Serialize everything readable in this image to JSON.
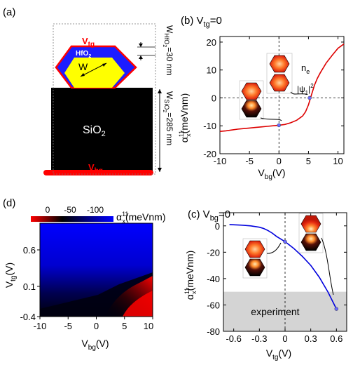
{
  "panel_a": {
    "label": "(a)",
    "top_gate": "V",
    "top_gate_sub": "tg",
    "bottom_gate": "V",
    "bottom_gate_sub": "bg",
    "hfo2_label": "HfO",
    "hfo2_sub": "2",
    "width_label": "W",
    "sio2_label": "SiO",
    "sio2_sub": "2",
    "hfo2_thickness": "W",
    "hfo2_thickness_sub": "HfO",
    "hfo2_thickness_subsub": "2",
    "hfo2_thickness_value": "=30 nm",
    "sio2_thickness": "W",
    "sio2_thickness_sub": "SiO",
    "sio2_thickness_subsub": "2",
    "sio2_thickness_value": "=285 nm",
    "colors": {
      "substrate": "#000000",
      "hfo2": "#1d1dff",
      "wire": "#ffff00",
      "gate": "#ff0000"
    }
  },
  "panel_d": {
    "label": "(d)",
    "colorbar_ticks": [
      "0",
      "-50",
      "-100"
    ],
    "colorbar_label": "α",
    "colorbar_label_sup": "11",
    "colorbar_label_sub": "x",
    "colorbar_label_unit": "(meVnm)",
    "xlabel": "V",
    "xlabel_sub": "bg",
    "xlabel_unit": "(V)",
    "ylabel": "V",
    "ylabel_sub": "tg",
    "ylabel_unit": "(V)",
    "xticks": [
      "-10",
      "-5",
      "0",
      "5",
      "10"
    ],
    "yticks": [
      "0.6",
      "0.1",
      "-0.4"
    ],
    "colormap": [
      "#ff0000",
      "#000000",
      "#0000ff"
    ]
  },
  "chart_data": [
    {
      "type": "line",
      "panel": "(b)",
      "title": "V",
      "title_sub": "tg",
      "title_value": "=0",
      "xlabel": "V",
      "xlabel_sub": "bg",
      "xlabel_unit": "(V)",
      "ylabel": "α",
      "ylabel_sup": "11",
      "ylabel_sub": "x",
      "ylabel_unit": "(meVnm)",
      "xlim": [
        -10,
        11
      ],
      "ylim": [
        -20,
        22
      ],
      "xticks": [
        -10,
        -5,
        0,
        5,
        10
      ],
      "yticks": [
        -20,
        -10,
        0,
        10,
        20
      ],
      "xtick_labels": [
        "-10",
        "-5",
        "0",
        "5",
        "10"
      ],
      "ytick_labels": [
        "-20",
        "-10",
        "0",
        "10",
        "20"
      ],
      "inset_label_top": "n",
      "inset_label_top_sub": "e",
      "inset_label_bottom": "|ψ",
      "inset_label_bottom_sub": "1",
      "inset_label_bottom_tail": "|",
      "inset_label_bottom_sup": "2",
      "series": [
        {
          "color": "#dd0000",
          "x": [
            -10,
            -9,
            -8,
            -7,
            -6,
            -5,
            -4,
            -3,
            -2,
            -1,
            0,
            1,
            2,
            3,
            4,
            4.5,
            5,
            5.5,
            6,
            6.5,
            7,
            8,
            9,
            10,
            11
          ],
          "y": [
            -12.0,
            -11.8,
            -11.5,
            -11.2,
            -11.0,
            -10.8,
            -10.6,
            -10.4,
            -10.2,
            -10.0,
            -9.8,
            -9.5,
            -8.9,
            -8.0,
            -6.5,
            -5.0,
            -2.5,
            1.0,
            4.5,
            7.0,
            9.0,
            12.5,
            15.2,
            17.8,
            19.3
          ]
        }
      ],
      "markers": [
        {
          "x": 0,
          "y": -9.8
        },
        {
          "x": 5.2,
          "y": 0
        }
      ]
    },
    {
      "type": "line",
      "panel": "(c)",
      "title": "V",
      "title_sub": "bg",
      "title_value": "=0",
      "xlabel": "V",
      "xlabel_sub": "tg",
      "xlabel_unit": "(V)",
      "ylabel": "α",
      "ylabel_sup": "11",
      "ylabel_sub": "x",
      "ylabel_unit": "(meVnm)",
      "xlim": [
        -0.72,
        0.72
      ],
      "ylim": [
        -80,
        10
      ],
      "xticks": [
        -0.6,
        -0.3,
        0,
        0.3,
        0.6
      ],
      "yticks": [
        -80,
        -60,
        -40,
        -20,
        0
      ],
      "xtick_labels": [
        "-0.6",
        "-0.3",
        "0",
        "0.3",
        "0.6"
      ],
      "ytick_labels": [
        "-80",
        "-60",
        "-40",
        "-20",
        "0"
      ],
      "band_label": "experiment",
      "band_y": [
        -80,
        -50
      ],
      "series": [
        {
          "color": "#0000dd",
          "x": [
            -0.65,
            -0.5,
            -0.4,
            -0.3,
            -0.25,
            -0.2,
            -0.15,
            -0.1,
            -0.05,
            0,
            0.1,
            0.2,
            0.3,
            0.4,
            0.5,
            0.6
          ],
          "y": [
            1.0,
            0.5,
            0.0,
            -1.0,
            -2.0,
            -3.5,
            -5.5,
            -8.0,
            -10.0,
            -12.0,
            -17.0,
            -23.0,
            -30.0,
            -39.0,
            -50.0,
            -63.0
          ]
        }
      ],
      "markers": [
        {
          "x": 0,
          "y": -12
        },
        {
          "x": 0.6,
          "y": -63
        }
      ]
    }
  ]
}
